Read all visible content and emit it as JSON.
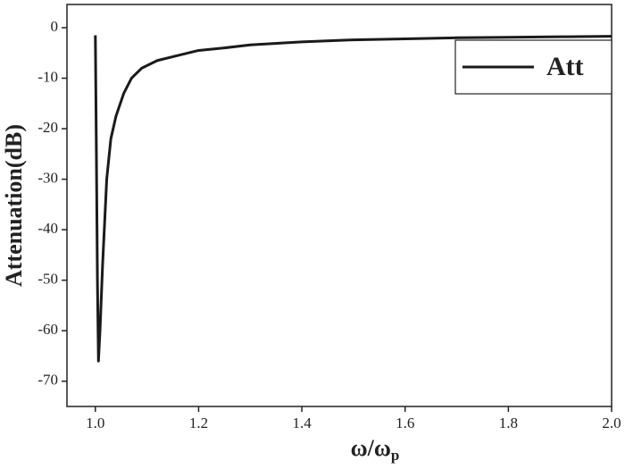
{
  "chart_data": {
    "type": "line",
    "x_label": "ω/ω",
    "x_label_subscript": "p",
    "y_label": "Attenuation(dB)",
    "x": [
      1.0,
      1.002,
      1.004,
      1.006,
      1.009,
      1.014,
      1.022,
      1.03,
      1.04,
      1.055,
      1.07,
      1.09,
      1.12,
      1.16,
      1.2,
      1.25,
      1.3,
      1.4,
      1.5,
      1.6,
      1.7,
      1.8,
      1.9,
      2.0
    ],
    "series": [
      {
        "name": "Att",
        "color": "#1a1a1a",
        "values": [
          -1.5,
          -25,
          -50,
          -66,
          -60,
          -47,
          -30,
          -22,
          -17.5,
          -13,
          -10,
          -8,
          -6.5,
          -5.5,
          -4.5,
          -4,
          -3.4,
          -2.8,
          -2.4,
          -2.2,
          -2,
          -1.9,
          -1.8,
          -1.7
        ]
      }
    ],
    "xlim": [
      0.945,
      2.0
    ],
    "ylim": [
      -75,
      4.6
    ],
    "xticks": [
      {
        "value": 1.0,
        "label": "1.0"
      },
      1.2,
      1.4,
      1.6,
      1.8,
      {
        "value": 2.0,
        "label": "2.0"
      }
    ],
    "yticks": [
      -70,
      -60,
      -50,
      -40,
      -30,
      -20,
      -10,
      0
    ],
    "legend": "top-right"
  }
}
